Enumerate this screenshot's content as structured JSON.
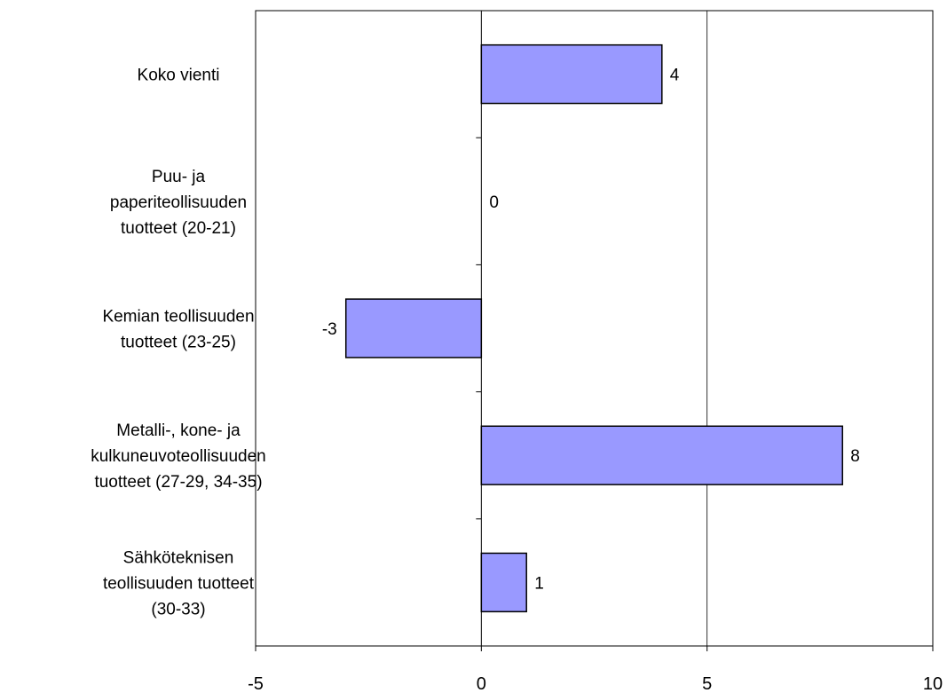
{
  "chart_data": {
    "type": "bar",
    "orientation": "horizontal",
    "categories": [
      [
        "Koko vienti"
      ],
      [
        "Puu- ja",
        "paperiteollisuuden",
        "tuotteet (20-21)"
      ],
      [
        "Kemian teollisuuden",
        "tuotteet (23-25)"
      ],
      [
        "Metalli-, kone- ja",
        "kulkuneuvoteollisuuden",
        "tuotteet (27-29, 34-35)"
      ],
      [
        "Sähköteknisen",
        "teollisuuden tuotteet",
        "(30-33)"
      ]
    ],
    "values": [
      4,
      0,
      -3,
      8,
      1
    ],
    "data_labels": [
      "4",
      "0",
      "-3",
      "8",
      "1"
    ],
    "xlim": [
      -5,
      10
    ],
    "xticks": [
      -5,
      0,
      5,
      10
    ],
    "xtick_labels": [
      "-5",
      "0",
      "5",
      "10"
    ],
    "grid": true,
    "legend": "none",
    "bar_color": "#9999ff",
    "bar_edge_color": "#000000",
    "axis_color": "#000000",
    "gridline_color": "#000000"
  }
}
